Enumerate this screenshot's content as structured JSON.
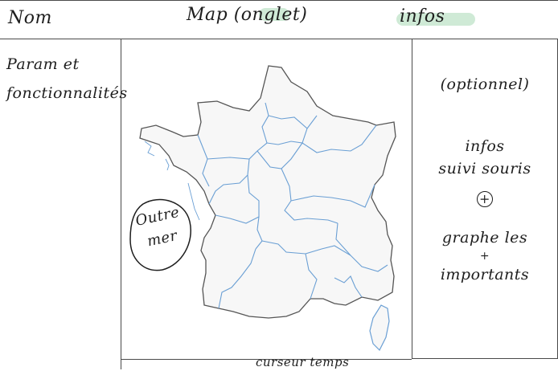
{
  "header": {
    "home_label": "Nom",
    "map_label": "Map (onglet)",
    "infos_label": "infos",
    "accent_color": "#bfe3c8"
  },
  "left_panel": {
    "lines": [
      "Param et",
      "fonctionnalités"
    ]
  },
  "right_panel": {
    "optional": "(optionnel)",
    "infos_lines": [
      "infos",
      "suivi souris"
    ],
    "plus": "+",
    "graphs_lines": [
      "graphe les",
      "+",
      "importants"
    ]
  },
  "map": {
    "sea_label_lines": [
      "Outre",
      "mer"
    ],
    "region_stroke": "#6a9fd4",
    "border_stroke": "#555555",
    "fill": "#f7f7f7"
  },
  "bottom": {
    "time_label": "curseur temps"
  }
}
